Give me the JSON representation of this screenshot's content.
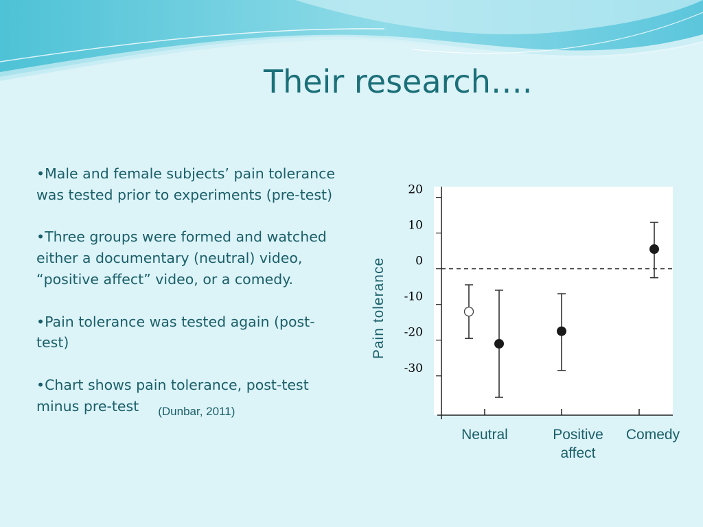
{
  "slide": {
    "title": "Their research….",
    "bullets": [
      "•Male and female subjects’ pain tolerance was tested prior to experiments (pre-test)",
      "•Three groups were formed and watched either a documentary (neutral) video, “positive affect” video, or  a comedy.",
      "•Pain tolerance was tested again (post-test)",
      "•Chart shows pain tolerance,  post-test minus pre-test"
    ],
    "citation": "(Dunbar, 2011)"
  },
  "chart_data": {
    "type": "scatter",
    "ylabel": "Pain  tolerance",
    "yticks": [
      20,
      10,
      0,
      -10,
      -20,
      -30
    ],
    "ylim": [
      -41,
      23
    ],
    "reference_line": 0,
    "grid": false,
    "groups": [
      {
        "label_lines": [
          "Neutral"
        ],
        "points": [
          {
            "mean": -12,
            "low": -19.5,
            "high": -4.5,
            "marker": "open"
          },
          {
            "mean": -21,
            "low": -36,
            "high": -6,
            "marker": "filled"
          }
        ]
      },
      {
        "label_lines": [
          "Positive",
          "affect"
        ],
        "points": [
          {
            "mean": -17.5,
            "low": -28.5,
            "high": -7,
            "marker": "filled"
          }
        ]
      },
      {
        "label_lines": [
          "Comedy"
        ],
        "points": [
          {
            "mean": 5.5,
            "low": -2.5,
            "high": 13,
            "marker": "filled"
          }
        ]
      }
    ]
  },
  "colors": {
    "title": "#1b6f78",
    "text": "#1a5f68",
    "background": "#dcf3f8"
  }
}
